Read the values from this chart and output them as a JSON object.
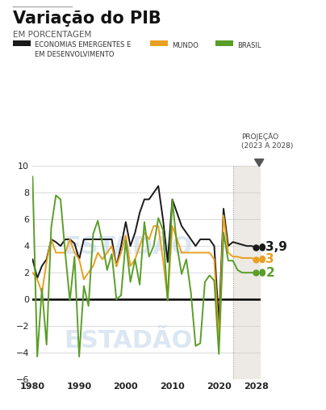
{
  "title": "Variação do PIB",
  "subtitle": "EM PORCENTAGEM",
  "legend_entries": [
    {
      "label": "ECONOMIAS EMERGENTES E\nEM DESENVOLVIMENTO",
      "color": "#1a1a1a"
    },
    {
      "label": "MUNDO",
      "color": "#e8a020"
    },
    {
      "label": "BRASIL",
      "color": "#5a9e28"
    }
  ],
  "projection_label": "PROJEÇÃO\n(2023 A 2028)",
  "projection_start": 2023,
  "projection_end": 2028,
  "end_labels": [
    {
      "value": 3.9,
      "color": "#1a1a1a",
      "text": "3,9"
    },
    {
      "value": 3.0,
      "color": "#e8a020",
      "text": "3"
    },
    {
      "value": 2.0,
      "color": "#5a9e28",
      "text": "2"
    }
  ],
  "ylim": [
    -6,
    10
  ],
  "yticks": [
    -6,
    -4,
    -2,
    0,
    2,
    4,
    6,
    8,
    10
  ],
  "xlim": [
    1980,
    2029
  ],
  "xticks": [
    1980,
    1990,
    2000,
    2010,
    2020,
    2028
  ],
  "background_color": "#ffffff",
  "projection_bg": "#ede9e4",
  "watermark_color": "#c5d8ec",
  "years_emergentes": [
    1980,
    1981,
    1982,
    1983,
    1984,
    1985,
    1986,
    1987,
    1988,
    1989,
    1990,
    1991,
    1992,
    1993,
    1994,
    1995,
    1996,
    1997,
    1998,
    1999,
    2000,
    2001,
    2002,
    2003,
    2004,
    2005,
    2006,
    2007,
    2008,
    2009,
    2010,
    2011,
    2012,
    2013,
    2014,
    2015,
    2016,
    2017,
    2018,
    2019,
    2020,
    2021,
    2022,
    2023,
    2024,
    2025,
    2026,
    2027,
    2028
  ],
  "values_emergentes": [
    3.0,
    1.6,
    2.5,
    3.0,
    4.5,
    4.3,
    4.0,
    4.5,
    4.5,
    4.2,
    3.0,
    4.5,
    4.5,
    4.5,
    4.5,
    4.5,
    4.5,
    4.5,
    2.5,
    4.0,
    5.8,
    4.0,
    5.0,
    6.5,
    7.5,
    7.5,
    8.0,
    8.5,
    6.0,
    2.8,
    7.5,
    6.5,
    5.5,
    5.0,
    4.5,
    4.0,
    4.5,
    4.5,
    4.5,
    4.0,
    -1.8,
    6.8,
    4.0,
    4.3,
    4.2,
    4.1,
    4.0,
    4.0,
    3.9
  ],
  "years_mundo": [
    1980,
    1981,
    1982,
    1983,
    1984,
    1985,
    1986,
    1987,
    1988,
    1989,
    1990,
    1991,
    1992,
    1993,
    1994,
    1995,
    1996,
    1997,
    1998,
    1999,
    2000,
    2001,
    2002,
    2003,
    2004,
    2005,
    2006,
    2007,
    2008,
    2009,
    2010,
    2011,
    2012,
    2013,
    2014,
    2015,
    2016,
    2017,
    2018,
    2019,
    2020,
    2021,
    2022,
    2023,
    2024,
    2025,
    2026,
    2027,
    2028
  ],
  "values_mundo": [
    2.0,
    1.5,
    0.5,
    2.8,
    4.5,
    3.5,
    3.5,
    3.5,
    4.5,
    3.5,
    3.0,
    1.5,
    2.0,
    2.5,
    3.5,
    3.0,
    3.5,
    4.0,
    2.5,
    3.5,
    4.8,
    2.5,
    3.0,
    4.0,
    5.0,
    4.5,
    5.5,
    5.5,
    3.0,
    0.0,
    5.5,
    4.5,
    3.5,
    3.5,
    3.5,
    3.5,
    3.5,
    3.5,
    3.5,
    3.0,
    -3.1,
    6.3,
    3.5,
    3.2,
    3.2,
    3.1,
    3.1,
    3.1,
    3.0
  ],
  "years_brasil": [
    1980,
    1981,
    1982,
    1983,
    1984,
    1985,
    1986,
    1987,
    1988,
    1989,
    1990,
    1991,
    1992,
    1993,
    1994,
    1995,
    1996,
    1997,
    1998,
    1999,
    2000,
    2001,
    2002,
    2003,
    2004,
    2005,
    2006,
    2007,
    2008,
    2009,
    2010,
    2011,
    2012,
    2013,
    2014,
    2015,
    2016,
    2017,
    2018,
    2019,
    2020,
    2021,
    2022,
    2023,
    2024,
    2025,
    2026,
    2027,
    2028
  ],
  "values_brasil": [
    9.2,
    -4.3,
    0.8,
    -3.4,
    5.4,
    7.8,
    7.5,
    3.5,
    -0.1,
    3.2,
    -4.3,
    1.0,
    -0.5,
    4.9,
    5.9,
    4.2,
    2.2,
    3.4,
    0.0,
    0.3,
    4.4,
    1.3,
    3.0,
    1.1,
    5.8,
    3.2,
    4.0,
    6.1,
    5.2,
    -0.1,
    7.5,
    4.0,
    1.9,
    3.0,
    0.5,
    -3.5,
    -3.3,
    1.3,
    1.8,
    1.4,
    -4.1,
    5.0,
    2.9,
    2.9,
    2.2,
    2.0,
    2.0,
    2.0,
    2.0
  ]
}
